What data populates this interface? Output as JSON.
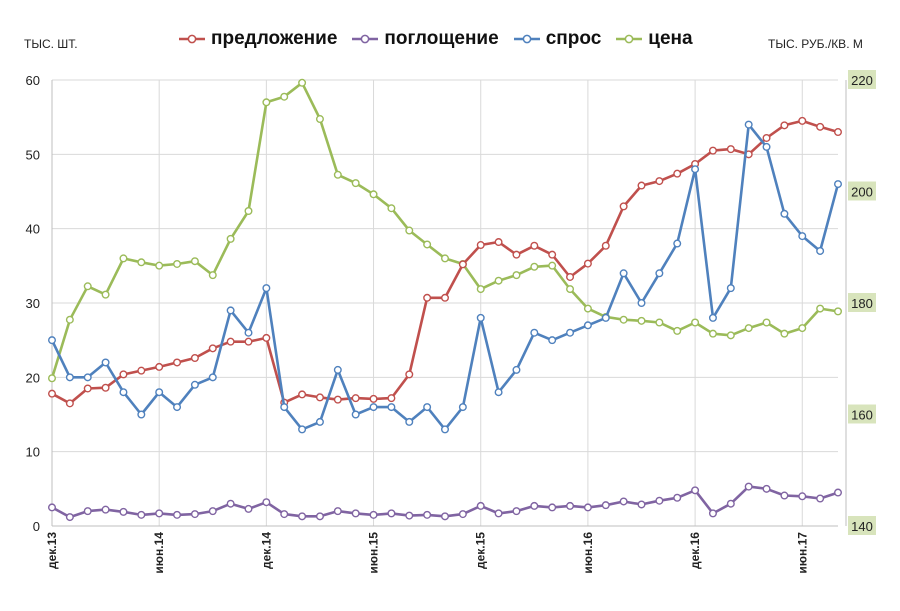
{
  "chart_data": {
    "type": "line",
    "ylabel_left": "ТЫС. ШТ.",
    "ylabel_right": "ТЫС. РУБ./КВ. М",
    "ylim_left": [
      0,
      60
    ],
    "ylim_right": [
      140,
      220
    ],
    "yticks_left": [
      "0",
      "10",
      "20",
      "30",
      "40",
      "50",
      "60"
    ],
    "yticks_right": [
      "140",
      "160",
      "180",
      "200",
      "220"
    ],
    "x_tick_labels": [
      "дек.13",
      "июн.14",
      "дек.14",
      "июн.15",
      "дек.15",
      "июн.16",
      "дек.16",
      "июн.17"
    ],
    "x_tick_positions": [
      0,
      6,
      12,
      18,
      24,
      30,
      36,
      42
    ],
    "grid": true,
    "legend_position": "top",
    "series": [
      {
        "name": "предложение",
        "color": "#c0504d",
        "axis": "left",
        "values": [
          17.8,
          16.5,
          18.5,
          18.6,
          20.4,
          20.9,
          21.4,
          22.0,
          22.6,
          23.9,
          24.8,
          24.8,
          25.3,
          16.6,
          17.7,
          17.3,
          17.0,
          17.2,
          17.1,
          17.2,
          20.4,
          30.7,
          30.7,
          35.2,
          37.8,
          38.2,
          36.5,
          37.7,
          36.5,
          33.5,
          35.3,
          37.7,
          43.0,
          45.8,
          46.4,
          47.4,
          48.7,
          50.5,
          50.7,
          50.0,
          52.2,
          53.9,
          54.5,
          53.7,
          53.0
        ]
      },
      {
        "name": "поглощение",
        "color": "#8064a2",
        "axis": "left",
        "values": [
          2.5,
          1.2,
          2.0,
          2.2,
          1.9,
          1.5,
          1.7,
          1.5,
          1.6,
          2.0,
          3.0,
          2.3,
          3.2,
          1.6,
          1.3,
          1.3,
          2.0,
          1.7,
          1.5,
          1.7,
          1.4,
          1.5,
          1.3,
          1.6,
          2.7,
          1.7,
          2.0,
          2.7,
          2.5,
          2.7,
          2.5,
          2.8,
          3.3,
          2.9,
          3.4,
          3.8,
          4.8,
          1.7,
          3.0,
          5.3,
          5.0,
          4.1,
          4.0,
          3.7,
          4.5
        ]
      },
      {
        "name": "спрос",
        "color": "#4f81bd",
        "axis": "left",
        "values": [
          25.0,
          20.0,
          20.0,
          22.0,
          18.0,
          15.0,
          18.0,
          16.0,
          19.0,
          20.0,
          29.0,
          26.0,
          32.0,
          16.0,
          13.0,
          14.0,
          21.0,
          15.0,
          16.0,
          16.0,
          14.0,
          16.0,
          13.0,
          16.0,
          28.0,
          18.0,
          21.0,
          26.0,
          25.0,
          26.0,
          27.0,
          28.0,
          34.0,
          30.0,
          34.0,
          38.0,
          48.0,
          28.0,
          32.0,
          54.0,
          51.0,
          42.0,
          39.0,
          37.0,
          46.0
        ]
      },
      {
        "name": "цена",
        "color": "#9bbb59",
        "axis": "right",
        "values": [
          166.5,
          177.0,
          183.0,
          181.5,
          188.0,
          187.3,
          186.7,
          187.0,
          187.5,
          185.0,
          191.5,
          196.5,
          216.0,
          217.0,
          219.5,
          213.0,
          203.0,
          201.5,
          199.5,
          197.0,
          193.0,
          190.5,
          188.0,
          187.0,
          182.5,
          184.0,
          185.0,
          186.5,
          186.7,
          182.5,
          179.0,
          177.5,
          177.0,
          176.8,
          176.5,
          175.0,
          176.5,
          174.5,
          174.2,
          175.5,
          176.5,
          174.5,
          175.5,
          179.0,
          178.5
        ]
      }
    ]
  }
}
